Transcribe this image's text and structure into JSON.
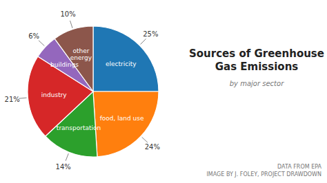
{
  "chart_data": {
    "type": "pie",
    "title": "Sources of Greenhouse\nGas Emissions",
    "subtitle": "by major sector",
    "categories": [
      "electricity",
      "food, land use",
      "transportation",
      "industry",
      "buildings",
      "other\nenergy"
    ],
    "values": [
      25,
      24,
      14,
      21,
      6,
      10
    ],
    "value_labels": [
      "25%",
      "24%",
      "14%",
      "21%",
      "6%",
      "10%"
    ],
    "data_labels": true,
    "annotations": [
      "DATA FROM EPA",
      "IMAGE BY J. FOLEY, PROJECT DRAWDOWN"
    ]
  }
}
